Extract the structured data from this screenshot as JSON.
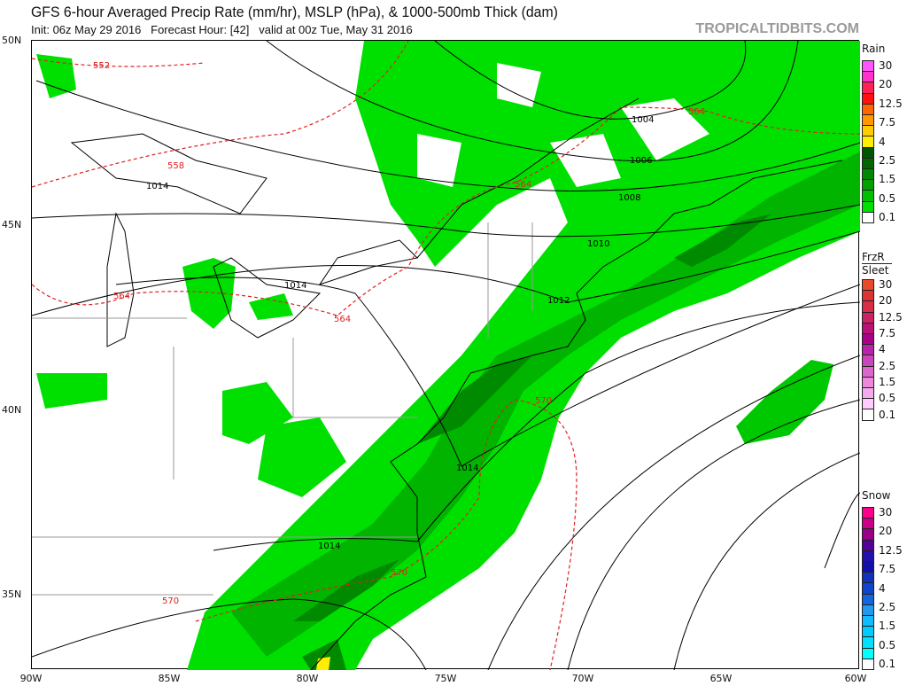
{
  "header": {
    "title": "GFS 6-hour Averaged Precip Rate (mm/hr), MSLP (hPa), & 1000-500mb Thick (dam)",
    "subtitle": "Init: 06z May 29 2016   Forecast Hour: [42]   valid at 00z Tue, May 31 2016",
    "brand": "TROPICALTIDBITS.COM"
  },
  "map": {
    "lat_labels": [
      "50N",
      "45N",
      "40N",
      "35N"
    ],
    "lon_labels": [
      "90W",
      "85W",
      "80W",
      "75W",
      "70W",
      "65W",
      "60W"
    ],
    "isobar_labels": [
      "1004",
      "1006",
      "1008",
      "1010",
      "1012",
      "1014",
      "1014",
      "1014",
      "1014"
    ],
    "thickness_labels": [
      "552",
      "558",
      "564",
      "564",
      "564",
      "564",
      "570",
      "570",
      "570"
    ],
    "colors": {
      "precip_light": "#00f000",
      "precip_mid": "#00c800",
      "precip_heavy": "#009a00",
      "precip_max": "#006400",
      "isobar": "#000000",
      "thickness": "#e02020"
    }
  },
  "legends": [
    {
      "title": "Rain",
      "labels": [
        "30",
        "20",
        "12.5",
        "7.5",
        "4",
        "2.5",
        "1.5",
        "0.5",
        "0.1"
      ],
      "colors": [
        "#ff55ff",
        "#ff33cc",
        "#ff2255",
        "#ff1111",
        "#ff6600",
        "#ff9900",
        "#ffcc00",
        "#ffee00",
        "#005500",
        "#006600",
        "#008800",
        "#00a000",
        "#00c000",
        "#00e000",
        "#ffffff"
      ]
    },
    {
      "title": "FrzR",
      "title2": "Sleet",
      "labels": [
        "30",
        "20",
        "12.5",
        "7.5",
        "4",
        "2.5",
        "1.5",
        "0.5",
        "0.1"
      ],
      "colors": [
        "#e84a2a",
        "#dd3333",
        "#d82e4a",
        "#cc2266",
        "#bb1177",
        "#aa0088",
        "#bb22aa",
        "#cc44bb",
        "#dd66cc",
        "#ee88dd",
        "#f5aaee",
        "#ffccff",
        "#ffffff"
      ]
    },
    {
      "title": "Snow",
      "labels": [
        "30",
        "20",
        "12.5",
        "7.5",
        "4",
        "2.5",
        "1.5",
        "0.5",
        "0.1"
      ],
      "colors": [
        "#ff0088",
        "#cc0088",
        "#990088",
        "#550099",
        "#2211aa",
        "#1111aa",
        "#1133bb",
        "#1144cc",
        "#1166dd",
        "#2299ee",
        "#11bbff",
        "#00ccff",
        "#00e0ff",
        "#00ffff",
        "#ffffff"
      ]
    }
  ]
}
